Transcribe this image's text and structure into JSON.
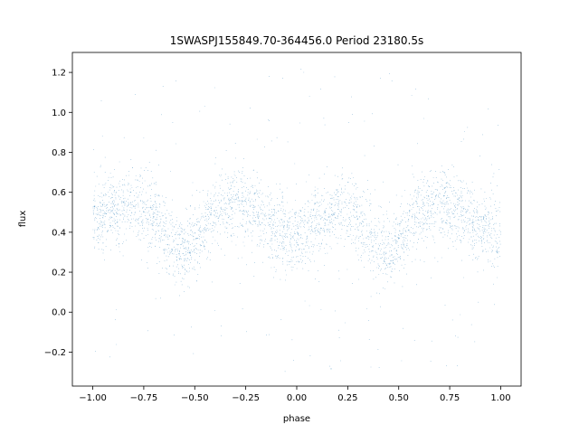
{
  "chart_data": {
    "type": "scatter",
    "title": "1SWASPJ155849.70-364456.0 Period 23180.5s",
    "xlabel": "phase",
    "ylabel": "flux",
    "xlim": [
      -1.1,
      1.1
    ],
    "ylim": [
      -0.37,
      1.3
    ],
    "xticks": [
      -1.0,
      -0.75,
      -0.5,
      -0.25,
      0.0,
      0.25,
      0.5,
      0.75,
      1.0
    ],
    "xtick_labels": [
      "−1.00",
      "−0.75",
      "−0.50",
      "−0.25",
      "0.00",
      "0.25",
      "0.50",
      "0.75",
      "1.00"
    ],
    "yticks": [
      -0.2,
      0.0,
      0.2,
      0.4,
      0.6,
      0.8,
      1.0,
      1.2
    ],
    "ytick_labels": [
      "−0.2",
      "0.0",
      "0.2",
      "0.4",
      "0.6",
      "0.8",
      "1.0",
      "1.2"
    ],
    "grid": false,
    "marker_color": "#1f77b4",
    "series": [
      {
        "description_of_shape": "phase-folded light curve, repeated twice over phase -1 to 1",
        "trend": {
          "phase": [
            -1.0,
            -0.9,
            -0.8,
            -0.7,
            -0.6,
            -0.55,
            -0.5,
            -0.4,
            -0.3,
            -0.2,
            -0.1,
            0.0,
            0.1,
            0.2,
            0.3,
            0.4,
            0.45,
            0.5,
            0.6,
            0.7,
            0.8,
            0.9,
            1.0
          ],
          "flux": [
            0.45,
            0.52,
            0.55,
            0.47,
            0.33,
            0.3,
            0.36,
            0.5,
            0.55,
            0.5,
            0.42,
            0.38,
            0.45,
            0.52,
            0.47,
            0.33,
            0.3,
            0.36,
            0.5,
            0.55,
            0.5,
            0.42,
            0.38
          ]
        },
        "scatter_sigma": 0.09,
        "outlier_range": [
          -0.3,
          1.22
        ]
      }
    ]
  }
}
